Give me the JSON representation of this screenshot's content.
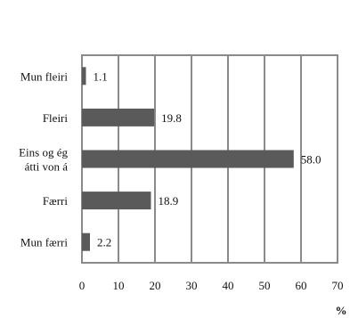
{
  "chart_data": {
    "type": "bar",
    "orientation": "horizontal",
    "categories": [
      "Mun fleiri",
      "Fleiri",
      "Eins og ég átti von á",
      "Færri",
      "Mun færri"
    ],
    "category_label_lines": [
      [
        "Mun fleiri"
      ],
      [
        "Fleiri"
      ],
      [
        "Eins og ég",
        "átti von á"
      ],
      [
        "Færri"
      ],
      [
        "Mun færri"
      ]
    ],
    "values": [
      1.1,
      19.8,
      58.0,
      18.9,
      2.2
    ],
    "value_labels": [
      "1.1",
      "19.8",
      "58.0",
      "18.9",
      "2.2"
    ],
    "xlim": [
      0,
      70
    ],
    "xticks": [
      0,
      10,
      20,
      30,
      40,
      50,
      60,
      70
    ],
    "xunit": "%",
    "grid": true,
    "bar_color": "#5a5a5a",
    "grid_color": "#8a8a8a"
  }
}
